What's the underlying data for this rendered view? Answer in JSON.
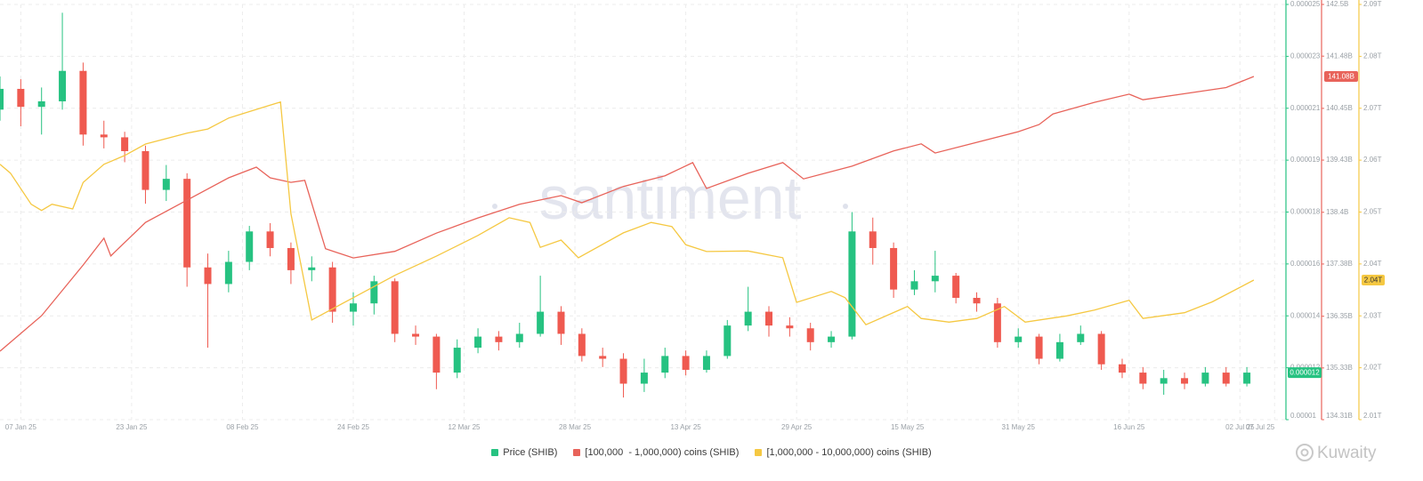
{
  "chart_data": {
    "type": "candlestick",
    "watermark": "santiment",
    "credit": "Kuwaity",
    "xlim": [
      0,
      185
    ],
    "xticks": [
      {
        "value": 3,
        "label": "07 Jan 25"
      },
      {
        "value": 19,
        "label": "23 Jan 25"
      },
      {
        "value": 35,
        "label": "08 Feb 25"
      },
      {
        "value": 51,
        "label": "24 Feb 25"
      },
      {
        "value": 67,
        "label": "12 Mar 25"
      },
      {
        "value": 83,
        "label": "28 Mar 25"
      },
      {
        "value": 99,
        "label": "13 Apr 25"
      },
      {
        "value": 115,
        "label": "29 Apr 25"
      },
      {
        "value": 131,
        "label": "15 May 25"
      },
      {
        "value": 147,
        "label": "31 May 25"
      },
      {
        "value": 163,
        "label": "16 Jun 25"
      },
      {
        "value": 179,
        "label": "02 Jul 25"
      },
      {
        "value": 184,
        "label": "07 Jul 25"
      }
    ],
    "ylim": [
      1e-05,
      2.5e-05
    ],
    "yticks": [
      {
        "value": 1e-05,
        "label": "0.00001"
      },
      {
        "value": 1.1875e-05,
        "label": "0.000012"
      },
      {
        "value": 1.375e-05,
        "label": "0.000014"
      },
      {
        "value": 1.5625e-05,
        "label": "0.000016"
      },
      {
        "value": 1.75e-05,
        "label": "0.000018"
      },
      {
        "value": 1.9375e-05,
        "label": "0.000019"
      },
      {
        "value": 2.125e-05,
        "label": "0.000021"
      },
      {
        "value": 2.3125e-05,
        "label": "0.000023"
      },
      {
        "value": 2.5e-05,
        "label": "0.000025"
      }
    ],
    "y2lim": [
      134.31,
      142.5
    ],
    "y2ticks": [
      {
        "value": 134.31,
        "label": "134.31B"
      },
      {
        "value": 135.33,
        "label": "135.33B"
      },
      {
        "value": 136.35,
        "label": "136.35B"
      },
      {
        "value": 137.38,
        "label": "137.38B"
      },
      {
        "value": 138.4,
        "label": "138.4B"
      },
      {
        "value": 139.43,
        "label": "139.43B"
      },
      {
        "value": 140.45,
        "label": "140.45B"
      },
      {
        "value": 141.48,
        "label": "141.48B"
      },
      {
        "value": 142.5,
        "label": "142.5B"
      }
    ],
    "y3lim": [
      2.01,
      2.09
    ],
    "y3ticks": [
      {
        "value": 2.01,
        "label": "2.01T"
      },
      {
        "value": 2.02,
        "label": "2.02T"
      },
      {
        "value": 2.03,
        "label": "2.03T"
      },
      {
        "value": 2.04,
        "label": "2.04T"
      },
      {
        "value": 2.05,
        "label": "2.05T"
      },
      {
        "value": 2.06,
        "label": "2.06T"
      },
      {
        "value": 2.07,
        "label": "2.07T"
      },
      {
        "value": 2.08,
        "label": "2.08T"
      },
      {
        "value": 2.09,
        "label": "2.09T"
      }
    ],
    "grid": true,
    "series": [
      {
        "name": "Price (SHIB)",
        "color": "#26c281",
        "down_color": "#ef5a50",
        "axis": "y",
        "last_label": "0.000012",
        "x": [
          0,
          3,
          6,
          9,
          12,
          15,
          18,
          21,
          24,
          27,
          30,
          33,
          36,
          39,
          42,
          45,
          48,
          51,
          54,
          57,
          60,
          63,
          66,
          69,
          72,
          75,
          78,
          81,
          84,
          87,
          90,
          93,
          96,
          99,
          102,
          105,
          108,
          111,
          114,
          117,
          120,
          123,
          126,
          129,
          132,
          135,
          138,
          141,
          144,
          147,
          150,
          153,
          156,
          159,
          162,
          165,
          168,
          171,
          174,
          177,
          180
        ],
        "open": [
          2.12e-05,
          2.195e-05,
          2.13e-05,
          2.15e-05,
          2.26e-05,
          2.03e-05,
          2.02e-05,
          1.97e-05,
          1.83e-05,
          1.87e-05,
          1.55e-05,
          1.49e-05,
          1.57e-05,
          1.68e-05,
          1.62e-05,
          1.54e-05,
          1.55e-05,
          1.39e-05,
          1.42e-05,
          1.5e-05,
          1.31e-05,
          1.3e-05,
          1.17e-05,
          1.26e-05,
          1.3e-05,
          1.28e-05,
          1.31e-05,
          1.39e-05,
          1.31e-05,
          1.23e-05,
          1.22e-05,
          1.13e-05,
          1.17e-05,
          1.23e-05,
          1.18e-05,
          1.23e-05,
          1.34e-05,
          1.39e-05,
          1.34e-05,
          1.33e-05,
          1.28e-05,
          1.3e-05,
          1.68e-05,
          1.62e-05,
          1.47e-05,
          1.5e-05,
          1.52e-05,
          1.44e-05,
          1.42e-05,
          1.28e-05,
          1.3e-05,
          1.22e-05,
          1.28e-05,
          1.31e-05,
          1.2e-05,
          1.17e-05,
          1.13e-05,
          1.15e-05,
          1.13e-05,
          1.17e-05,
          1.13e-05
        ],
        "high": [
          2.24e-05,
          2.23e-05,
          2.2e-05,
          2.47e-05,
          2.29e-05,
          2.08e-05,
          2.04e-05,
          1.99e-05,
          1.92e-05,
          1.89e-05,
          1.6e-05,
          1.61e-05,
          1.7e-05,
          1.71e-05,
          1.64e-05,
          1.59e-05,
          1.57e-05,
          1.46e-05,
          1.52e-05,
          1.51e-05,
          1.34e-05,
          1.31e-05,
          1.29e-05,
          1.33e-05,
          1.32e-05,
          1.35e-05,
          1.52e-05,
          1.41e-05,
          1.33e-05,
          1.26e-05,
          1.24e-05,
          1.22e-05,
          1.26e-05,
          1.25e-05,
          1.25e-05,
          1.36e-05,
          1.48e-05,
          1.41e-05,
          1.37e-05,
          1.35e-05,
          1.32e-05,
          1.75e-05,
          1.73e-05,
          1.64e-05,
          1.54e-05,
          1.61e-05,
          1.53e-05,
          1.46e-05,
          1.44e-05,
          1.33e-05,
          1.31e-05,
          1.31e-05,
          1.34e-05,
          1.32e-05,
          1.22e-05,
          1.19e-05,
          1.18e-05,
          1.17e-05,
          1.19e-05,
          1.19e-05,
          1.19e-05
        ],
        "low": [
          2.08e-05,
          2.06e-05,
          2.03e-05,
          2.12e-05,
          1.99e-05,
          1.98e-05,
          1.93e-05,
          1.78e-05,
          1.79e-05,
          1.48e-05,
          1.26e-05,
          1.46e-05,
          1.54e-05,
          1.59e-05,
          1.49e-05,
          1.5e-05,
          1.35e-05,
          1.34e-05,
          1.38e-05,
          1.28e-05,
          1.27e-05,
          1.11e-05,
          1.15e-05,
          1.24e-05,
          1.25e-05,
          1.26e-05,
          1.3e-05,
          1.27e-05,
          1.21e-05,
          1.19e-05,
          1.08e-05,
          1.1e-05,
          1.15e-05,
          1.16e-05,
          1.17e-05,
          1.22e-05,
          1.32e-05,
          1.3e-05,
          1.3e-05,
          1.25e-05,
          1.26e-05,
          1.29e-05,
          1.56e-05,
          1.44e-05,
          1.45e-05,
          1.46e-05,
          1.42e-05,
          1.39e-05,
          1.26e-05,
          1.26e-05,
          1.2e-05,
          1.21e-05,
          1.27e-05,
          1.18e-05,
          1.15e-05,
          1.11e-05,
          1.09e-05,
          1.11e-05,
          1.12e-05,
          1.12e-05,
          1.12e-05
        ],
        "close": [
          2.195e-05,
          2.13e-05,
          2.15e-05,
          2.26e-05,
          2.03e-05,
          2.02e-05,
          1.97e-05,
          1.83e-05,
          1.87e-05,
          1.55e-05,
          1.49e-05,
          1.57e-05,
          1.68e-05,
          1.62e-05,
          1.54e-05,
          1.55e-05,
          1.39e-05,
          1.42e-05,
          1.5e-05,
          1.31e-05,
          1.3e-05,
          1.17e-05,
          1.26e-05,
          1.3e-05,
          1.28e-05,
          1.31e-05,
          1.39e-05,
          1.31e-05,
          1.23e-05,
          1.22e-05,
          1.13e-05,
          1.17e-05,
          1.23e-05,
          1.18e-05,
          1.23e-05,
          1.34e-05,
          1.39e-05,
          1.34e-05,
          1.33e-05,
          1.28e-05,
          1.3e-05,
          1.68e-05,
          1.62e-05,
          1.47e-05,
          1.5e-05,
          1.52e-05,
          1.44e-05,
          1.42e-05,
          1.28e-05,
          1.3e-05,
          1.22e-05,
          1.28e-05,
          1.31e-05,
          1.2e-05,
          1.17e-05,
          1.13e-05,
          1.15e-05,
          1.13e-05,
          1.17e-05,
          1.13e-05,
          1.17e-05
        ]
      },
      {
        "name": "[100,000  - 1,000,000) coins (SHIB)",
        "color": "#e8635a",
        "axis": "y2",
        "last_label": "141.08B",
        "x": [
          0,
          6,
          12,
          15,
          16,
          21,
          27,
          33,
          37,
          39,
          42,
          44,
          47,
          51,
          57,
          63,
          69,
          75,
          81,
          84,
          90,
          96,
          100,
          102,
          108,
          113,
          116,
          123,
          129,
          133,
          135,
          141,
          147,
          150,
          152,
          158,
          163,
          165,
          171,
          177,
          181
        ],
        "values": [
          135.66,
          136.36,
          137.36,
          137.89,
          137.54,
          138.2,
          138.64,
          139.08,
          139.29,
          139.08,
          138.99,
          139.03,
          137.68,
          137.5,
          137.63,
          137.99,
          138.29,
          138.56,
          138.73,
          138.59,
          138.91,
          139.12,
          139.38,
          138.87,
          139.17,
          139.38,
          139.06,
          139.31,
          139.61,
          139.75,
          139.57,
          139.78,
          139.99,
          140.13,
          140.34,
          140.57,
          140.73,
          140.62,
          140.74,
          140.86,
          141.08
        ]
      },
      {
        "name": "[1,000,000 - 10,000,000) coins (SHIB)",
        "color": "#f5c842",
        "axis": "y3",
        "last_label": "2.04T",
        "x": [
          0,
          1.5,
          4.5,
          6,
          7.5,
          10.5,
          12,
          15,
          18,
          21,
          27,
          30,
          33,
          39,
          40.5,
          42,
          45,
          51,
          57,
          63,
          69,
          73.5,
          76.5,
          78,
          81,
          83.5,
          90,
          94,
          97,
          99,
          102,
          108,
          113,
          115,
          120,
          122,
          125,
          131,
          133,
          137,
          141,
          145,
          148,
          154,
          158,
          163,
          165,
          171,
          175,
          181
        ],
        "values": [
          2.0592,
          2.0575,
          2.0515,
          2.0503,
          2.0515,
          2.0506,
          2.0557,
          2.0592,
          2.0609,
          2.0631,
          2.0652,
          2.066,
          2.0681,
          2.0706,
          2.0712,
          2.0497,
          2.0292,
          2.0335,
          2.0378,
          2.0415,
          2.0455,
          2.0489,
          2.048,
          2.0432,
          2.0446,
          2.0412,
          2.046,
          2.048,
          2.0472,
          2.0437,
          2.0424,
          2.0425,
          2.0412,
          2.0326,
          2.0347,
          2.0335,
          2.0283,
          2.0318,
          2.0295,
          2.0288,
          2.0295,
          2.0318,
          2.0288,
          2.03,
          2.0311,
          2.033,
          2.0295,
          2.0306,
          2.0327,
          2.0369
        ]
      }
    ]
  }
}
